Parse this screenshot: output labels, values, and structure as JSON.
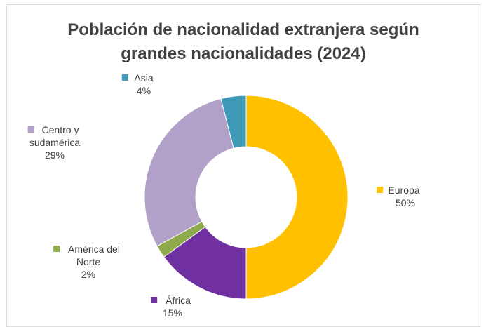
{
  "chart_data": {
    "type": "pie",
    "subtype": "doughnut",
    "title": [
      "Población de nacionalidad extranjera según",
      "grandes nacionalidades (2024)"
    ],
    "slices": [
      {
        "name": "Europa",
        "name_lines": [
          "Europa"
        ],
        "value": 50,
        "label": "50%",
        "color": "#ffc000"
      },
      {
        "name": "África",
        "name_lines": [
          "África"
        ],
        "value": 15,
        "label": "15%",
        "color": "#7030a0"
      },
      {
        "name": "América del Norte",
        "name_lines": [
          "América del",
          "Norte"
        ],
        "value": 2,
        "label": "2%",
        "color": "#8faa4c"
      },
      {
        "name": "Centro y sudamérica",
        "name_lines": [
          "Centro y",
          "sudamérica"
        ],
        "value": 29,
        "label": "29%",
        "color": "#b1a0c7"
      },
      {
        "name": "Asia",
        "name_lines": [
          "Asia"
        ],
        "value": 4,
        "label": "4%",
        "color": "#3e9ab8"
      }
    ],
    "start_angle": "12 o'clock, clockwise",
    "legend": "none (category labels on slices)"
  }
}
